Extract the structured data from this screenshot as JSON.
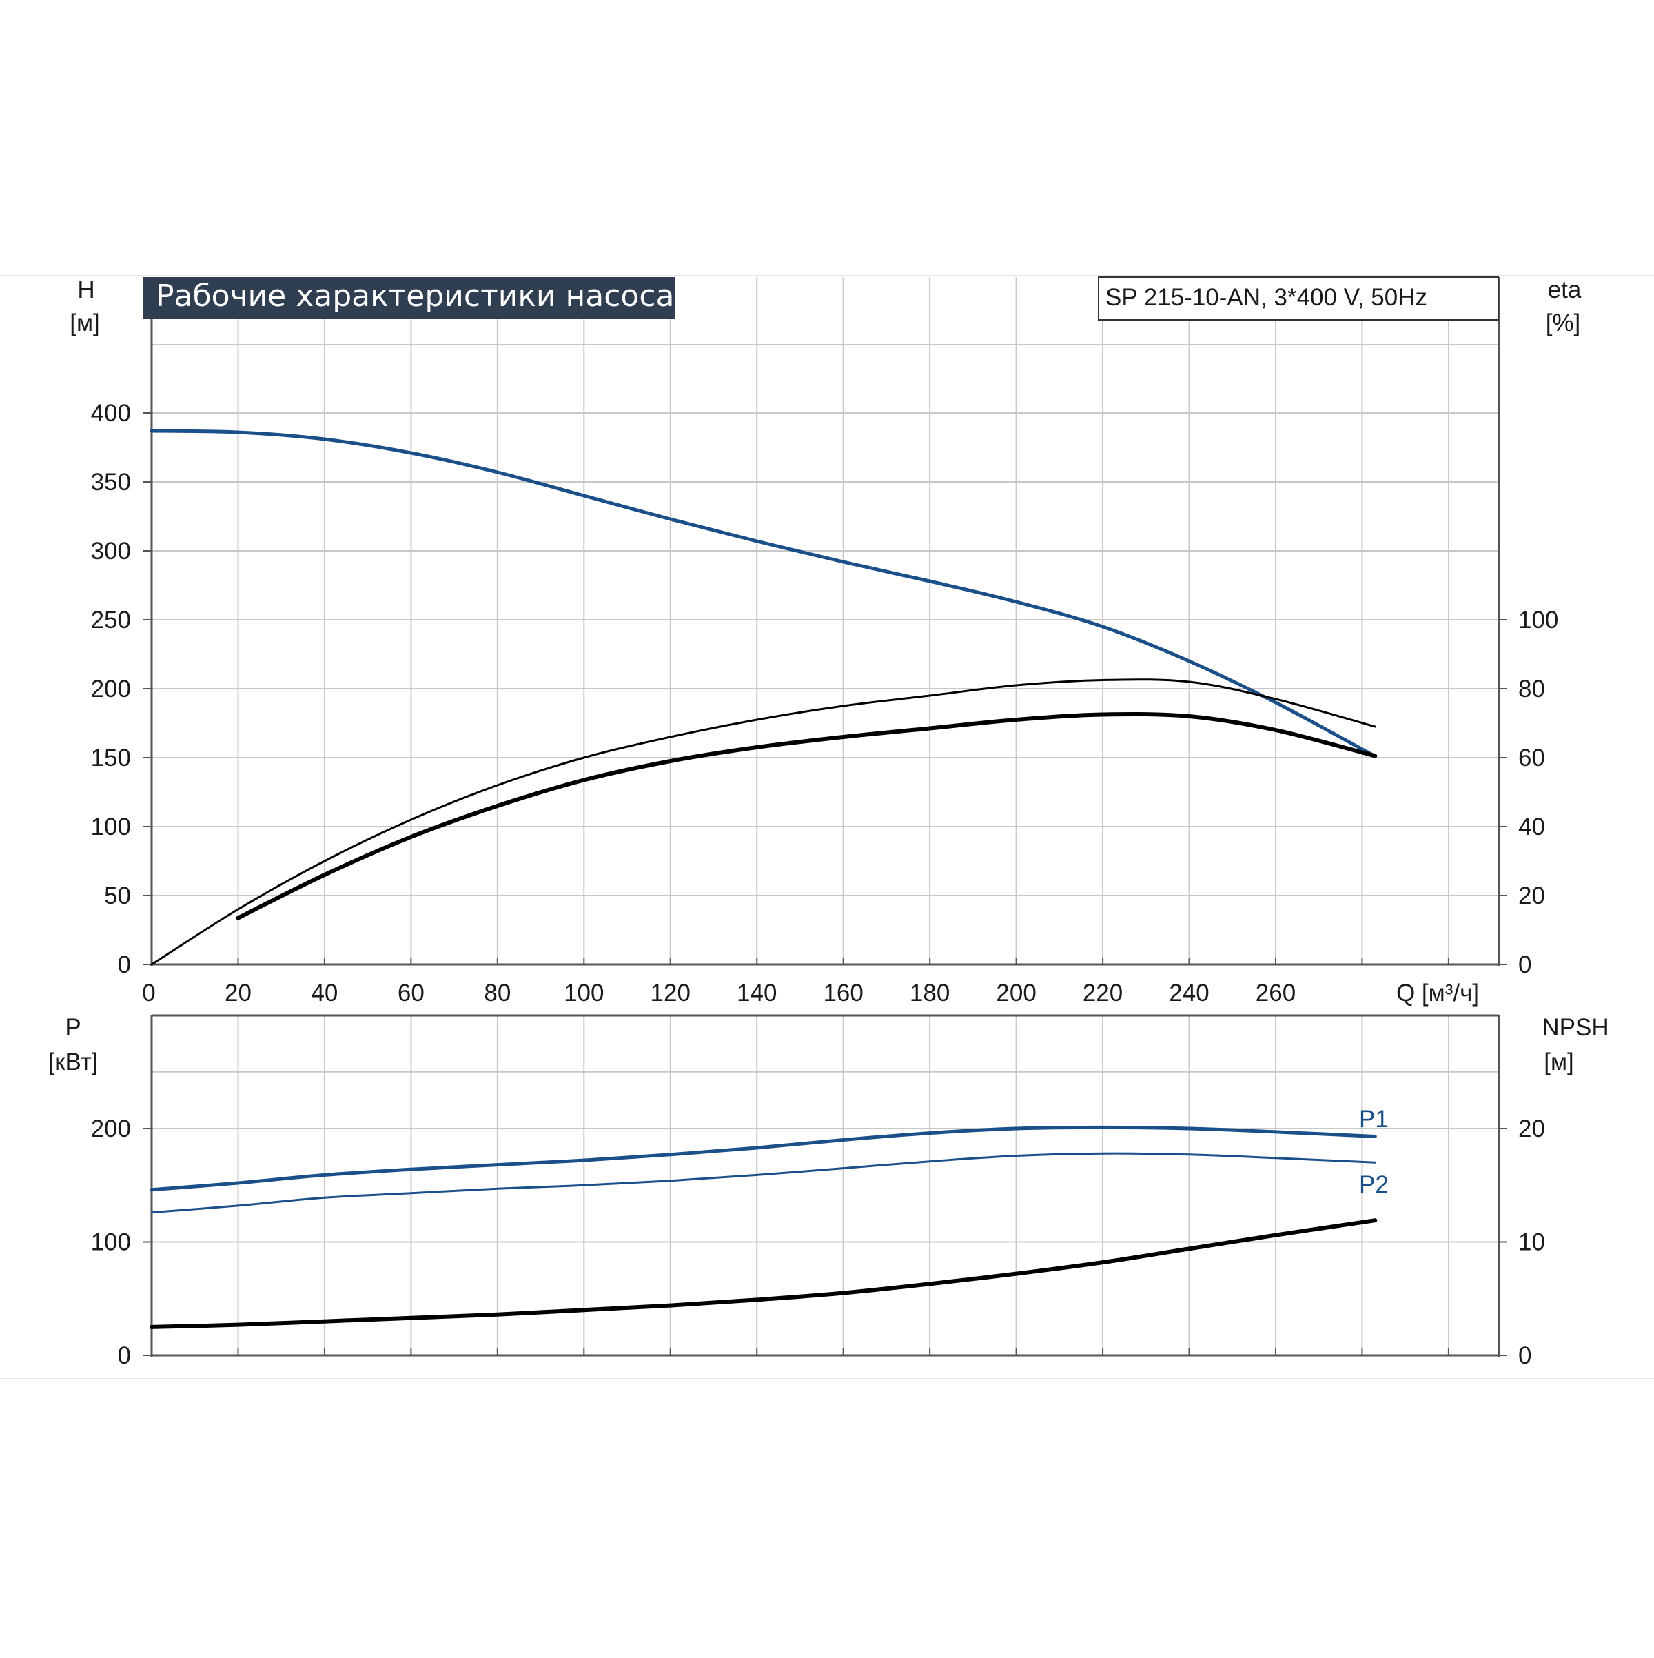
{
  "colors": {
    "blue": "#1b4f8a",
    "black": "#000000",
    "grid": "#c8c8c8",
    "frame": "#555555",
    "title_bg": "#2f3e50"
  },
  "title": "Рабочие характеристики насоса",
  "model": "SP 215-10-AN, 3*400 V, 50Hz",
  "chart_data": [
    {
      "type": "line",
      "xlabel": "Q [м³/ч]",
      "x_ticks": [
        "0",
        "20",
        "40",
        "60",
        "80",
        "100",
        "120",
        "140",
        "160",
        "180",
        "200",
        "220",
        "240",
        "260"
      ],
      "xlim": [
        0,
        310
      ],
      "y_left": {
        "label_top": "H",
        "label_unit": "[м]",
        "ticks": [
          "0",
          "50",
          "100",
          "150",
          "200",
          "250",
          "300",
          "350",
          "400"
        ],
        "lim": [
          0,
          450
        ]
      },
      "y_right": {
        "label_top": "eta",
        "label_unit": "[%]",
        "ticks": [
          "0",
          "20",
          "40",
          "60",
          "80",
          "100"
        ],
        "lim": [
          0,
          180
        ]
      },
      "grid": true,
      "series": [
        {
          "name": "H",
          "color": "blue",
          "width": 5,
          "axis": "left",
          "x": [
            0,
            20,
            40,
            60,
            80,
            100,
            120,
            140,
            160,
            180,
            200,
            220,
            240,
            260,
            283
          ],
          "y": [
            387,
            386,
            381,
            371,
            357,
            340,
            323,
            307,
            292,
            278,
            263,
            245,
            220,
            190,
            151
          ]
        },
        {
          "name": "",
          "color": "black",
          "width": 3,
          "axis": "right",
          "x": [
            0,
            20,
            40,
            60,
            80,
            100,
            120,
            140,
            160,
            180,
            200,
            220,
            240,
            260,
            283
          ],
          "y": [
            0,
            16,
            30,
            42,
            52,
            60,
            66,
            71,
            75,
            78,
            81,
            82.5,
            82,
            77,
            69
          ]
        },
        {
          "name": "",
          "color": "black",
          "width": 6,
          "axis": "right",
          "x": [
            20,
            40,
            60,
            80,
            100,
            120,
            140,
            160,
            180,
            200,
            220,
            240,
            260,
            283
          ],
          "y": [
            13.5,
            26,
            37,
            46,
            53.5,
            59,
            63,
            66,
            68.5,
            71,
            72.5,
            72,
            68,
            60.5
          ]
        }
      ]
    },
    {
      "type": "line",
      "x_ticks": [
        "0",
        "20",
        "40",
        "60",
        "80",
        "100",
        "120",
        "140",
        "160",
        "180",
        "200",
        "220",
        "240",
        "260"
      ],
      "xlim": [
        0,
        310
      ],
      "y_left": {
        "label_top": "P",
        "label_unit": "[кВт]",
        "ticks": [
          "0",
          "100",
          "200"
        ],
        "lim": [
          0,
          300
        ]
      },
      "y_right": {
        "label_top": "NPSH",
        "label_unit": "[м]",
        "ticks": [
          "0",
          "10",
          "20"
        ],
        "lim": [
          0,
          30
        ]
      },
      "grid": true,
      "series": [
        {
          "name": "P1",
          "color": "blue",
          "width": 5,
          "axis": "left",
          "x": [
            0,
            20,
            40,
            60,
            80,
            100,
            120,
            140,
            160,
            180,
            200,
            220,
            240,
            260,
            283
          ],
          "y": [
            146,
            152,
            159,
            164,
            168,
            172,
            177,
            183,
            190,
            196,
            200,
            201,
            200,
            197,
            193
          ]
        },
        {
          "name": "P2",
          "color": "blue",
          "width": 3,
          "axis": "left",
          "x": [
            0,
            20,
            40,
            60,
            80,
            100,
            120,
            140,
            160,
            180,
            200,
            220,
            240,
            260,
            283
          ],
          "y": [
            126,
            132,
            139,
            143,
            147,
            150,
            154,
            159,
            165,
            171,
            176,
            178,
            177,
            174,
            170
          ]
        },
        {
          "name": "",
          "color": "black",
          "width": 6,
          "axis": "right",
          "x": [
            0,
            20,
            40,
            60,
            80,
            100,
            120,
            140,
            160,
            180,
            200,
            220,
            240,
            260,
            283
          ],
          "y": [
            2.5,
            2.7,
            3.0,
            3.3,
            3.6,
            4.0,
            4.4,
            4.9,
            5.5,
            6.3,
            7.2,
            8.2,
            9.4,
            10.6,
            11.9
          ]
        }
      ]
    }
  ]
}
